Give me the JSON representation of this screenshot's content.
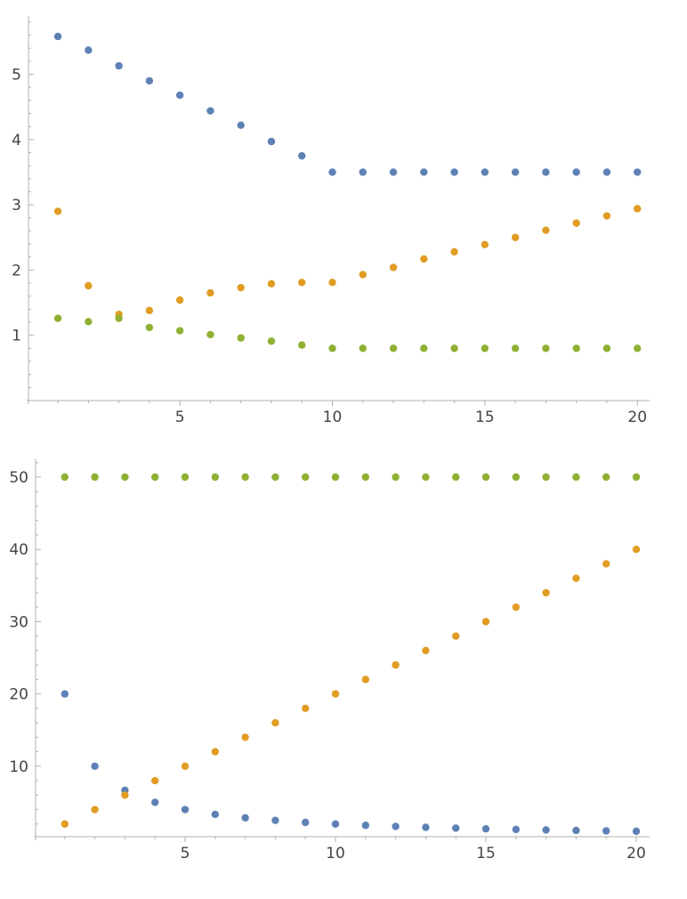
{
  "chart_data": [
    {
      "type": "scatter",
      "title": "",
      "xlabel": "",
      "ylabel": "",
      "xlim": [
        0,
        20.5
      ],
      "ylim": [
        0,
        5.85
      ],
      "x_ticks": [
        5,
        10,
        15,
        20
      ],
      "y_ticks": [
        1,
        2,
        3,
        4,
        5
      ],
      "x_tick_labels": [
        "5",
        "10",
        "15",
        "20"
      ],
      "y_tick_labels": [
        "1",
        "2",
        "3",
        "4",
        "5"
      ],
      "grid": false,
      "x": [
        1,
        2,
        3,
        4,
        5,
        6,
        7,
        8,
        9,
        10,
        11,
        12,
        13,
        14,
        15,
        16,
        17,
        18,
        19,
        20
      ],
      "series": [
        {
          "color": "#5E81B5",
          "values": [
            5.58,
            5.37,
            5.13,
            4.9,
            4.68,
            4.44,
            4.22,
            3.97,
            3.75,
            3.5,
            3.5,
            3.5,
            3.5,
            3.5,
            3.5,
            3.5,
            3.5,
            3.5,
            3.5,
            3.5
          ]
        },
        {
          "color": "#E19C24",
          "values": [
            2.9,
            1.76,
            1.32,
            1.38,
            1.54,
            1.65,
            1.73,
            1.79,
            1.81,
            1.81,
            1.93,
            2.04,
            2.17,
            2.28,
            2.39,
            2.5,
            2.61,
            2.72,
            2.83,
            2.94
          ]
        },
        {
          "color": "#8FB032",
          "values": [
            1.26,
            1.21,
            1.26,
            1.12,
            1.07,
            1.01,
            0.96,
            0.91,
            0.85,
            0.8,
            0.8,
            0.8,
            0.8,
            0.8,
            0.8,
            0.8,
            0.8,
            0.8,
            0.8,
            0.8
          ]
        }
      ]
    },
    {
      "type": "scatter",
      "title": "",
      "xlabel": "",
      "ylabel": "",
      "xlim": [
        0,
        20.5
      ],
      "ylim": [
        0,
        52.5
      ],
      "x_ticks": [
        5,
        10,
        15,
        20
      ],
      "y_ticks": [
        10,
        20,
        30,
        40,
        50
      ],
      "x_tick_labels": [
        "5",
        "10",
        "15",
        "20"
      ],
      "y_tick_labels": [
        "10",
        "20",
        "30",
        "40",
        "50"
      ],
      "grid": false,
      "x": [
        1,
        2,
        3,
        4,
        5,
        6,
        7,
        8,
        9,
        10,
        11,
        12,
        13,
        14,
        15,
        16,
        17,
        18,
        19,
        20
      ],
      "series": [
        {
          "color": "#5E81B5",
          "values": [
            20,
            10,
            6.67,
            5,
            4,
            3.33,
            2.86,
            2.5,
            2.22,
            2,
            1.82,
            1.67,
            1.54,
            1.43,
            1.33,
            1.25,
            1.18,
            1.11,
            1.05,
            1
          ]
        },
        {
          "color": "#E19C24",
          "values": [
            2,
            4,
            6,
            8,
            10,
            12,
            14,
            16,
            18,
            20,
            22,
            24,
            26,
            28,
            30,
            32,
            34,
            36,
            38,
            40
          ]
        },
        {
          "color": "#8FB032",
          "values": [
            50,
            50,
            50,
            50,
            50,
            50,
            50,
            50,
            50,
            50,
            50,
            50,
            50,
            50,
            50,
            50,
            50,
            50,
            50,
            50
          ]
        }
      ]
    }
  ]
}
